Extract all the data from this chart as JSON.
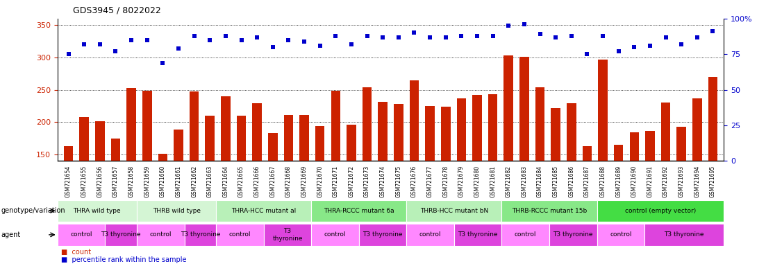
{
  "title": "GDS3945 / 8022022",
  "samples": [
    "GSM721654",
    "GSM721655",
    "GSM721656",
    "GSM721657",
    "GSM721658",
    "GSM721659",
    "GSM721660",
    "GSM721661",
    "GSM721662",
    "GSM721663",
    "GSM721664",
    "GSM721665",
    "GSM721666",
    "GSM721667",
    "GSM721668",
    "GSM721669",
    "GSM721670",
    "GSM721671",
    "GSM721672",
    "GSM721673",
    "GSM721674",
    "GSM721675",
    "GSM721676",
    "GSM721677",
    "GSM721678",
    "GSM721679",
    "GSM721680",
    "GSM721681",
    "GSM721682",
    "GSM721683",
    "GSM721684",
    "GSM721685",
    "GSM721686",
    "GSM721687",
    "GSM721688",
    "GSM721689",
    "GSM721690",
    "GSM721691",
    "GSM721692",
    "GSM721693",
    "GSM721694",
    "GSM721695"
  ],
  "counts": [
    163,
    208,
    201,
    175,
    253,
    249,
    151,
    188,
    247,
    210,
    240,
    210,
    229,
    183,
    211,
    211,
    194,
    248,
    196,
    254,
    231,
    228,
    265,
    225,
    224,
    237,
    242,
    243,
    303,
    301,
    254,
    222,
    229,
    163,
    297,
    165,
    184,
    186,
    230,
    193,
    237,
    270
  ],
  "percentile": [
    75,
    82,
    82,
    77,
    85,
    85,
    69,
    79,
    88,
    85,
    88,
    85,
    87,
    80,
    85,
    84,
    81,
    88,
    82,
    88,
    87,
    87,
    90,
    87,
    87,
    88,
    88,
    88,
    95,
    96,
    89,
    87,
    88,
    75,
    88,
    77,
    80,
    81,
    87,
    82,
    87,
    91
  ],
  "bar_color": "#cc2200",
  "dot_color": "#0000cc",
  "ylim_left": [
    140,
    360
  ],
  "ylim_right": [
    0,
    100
  ],
  "yticks_left": [
    150,
    200,
    250,
    300,
    350
  ],
  "yticks_right": [
    0,
    25,
    50,
    75,
    100
  ],
  "ytick_labels_right": [
    "0",
    "25",
    "50",
    "75",
    "100%"
  ],
  "grid_y": [
    150,
    200,
    250,
    300,
    350
  ],
  "genotype_groups": [
    {
      "label": "THRA wild type",
      "start": 0,
      "end": 5,
      "color": "#d4f5d4"
    },
    {
      "label": "THRB wild type",
      "start": 5,
      "end": 10,
      "color": "#d4f5d4"
    },
    {
      "label": "THRA-HCC mutant al",
      "start": 10,
      "end": 16,
      "color": "#b8f0b8"
    },
    {
      "label": "THRA-RCCC mutant 6a",
      "start": 16,
      "end": 22,
      "color": "#88e888"
    },
    {
      "label": "THRB-HCC mutant bN",
      "start": 22,
      "end": 28,
      "color": "#b8f0b8"
    },
    {
      "label": "THRB-RCCC mutant 15b",
      "start": 28,
      "end": 34,
      "color": "#88e888"
    },
    {
      "label": "control (empty vector)",
      "start": 34,
      "end": 42,
      "color": "#44dd44"
    }
  ],
  "agent_groups": [
    {
      "label": "control",
      "start": 0,
      "end": 3,
      "color": "#ff88ff"
    },
    {
      "label": "T3 thyronine",
      "start": 3,
      "end": 5,
      "color": "#dd44dd"
    },
    {
      "label": "control",
      "start": 5,
      "end": 8,
      "color": "#ff88ff"
    },
    {
      "label": "T3 thyronine",
      "start": 8,
      "end": 10,
      "color": "#dd44dd"
    },
    {
      "label": "control",
      "start": 10,
      "end": 13,
      "color": "#ff88ff"
    },
    {
      "label": "T3\nthyronine",
      "start": 13,
      "end": 16,
      "color": "#dd44dd"
    },
    {
      "label": "control",
      "start": 16,
      "end": 19,
      "color": "#ff88ff"
    },
    {
      "label": "T3 thyronine",
      "start": 19,
      "end": 22,
      "color": "#dd44dd"
    },
    {
      "label": "control",
      "start": 22,
      "end": 25,
      "color": "#ff88ff"
    },
    {
      "label": "T3 thyronine",
      "start": 25,
      "end": 28,
      "color": "#dd44dd"
    },
    {
      "label": "control",
      "start": 28,
      "end": 31,
      "color": "#ff88ff"
    },
    {
      "label": "T3 thyronine",
      "start": 31,
      "end": 34,
      "color": "#dd44dd"
    },
    {
      "label": "control",
      "start": 34,
      "end": 37,
      "color": "#ff88ff"
    },
    {
      "label": "T3 thyronine",
      "start": 37,
      "end": 42,
      "color": "#dd44dd"
    }
  ],
  "legend_items": [
    {
      "label": "count",
      "color": "#cc2200"
    },
    {
      "label": "percentile rank within the sample",
      "color": "#0000cc"
    }
  ]
}
